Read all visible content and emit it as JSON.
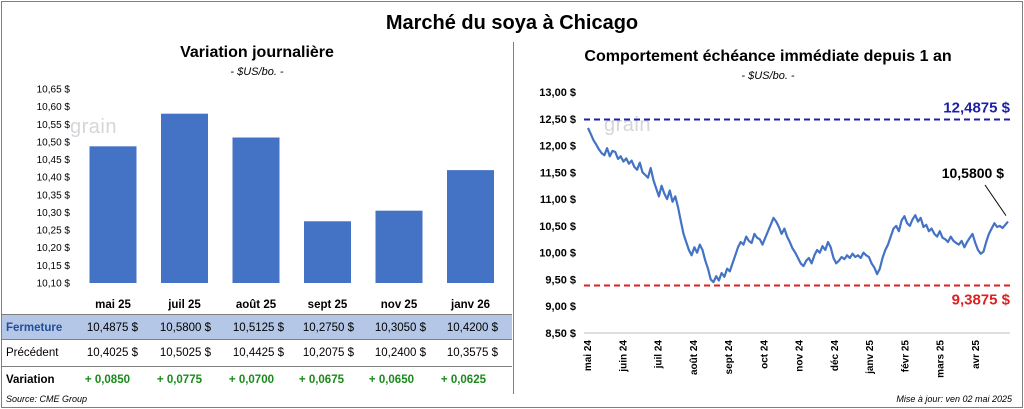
{
  "title": "Marché du soya à Chicago",
  "source": "Source: CME Group",
  "updated": "Mise à jour: ven 02 mai 2025",
  "logo_text": "grain",
  "chart_data": [
    {
      "type": "bar",
      "title": "Variation journalière",
      "subtitle": "- $US/bo. -",
      "categories": [
        "mai 25",
        "juil 25",
        "août 25",
        "sept 25",
        "nov 25",
        "janv 26"
      ],
      "values": [
        10.4875,
        10.58,
        10.5125,
        10.275,
        10.305,
        10.42
      ],
      "ylim": [
        10.1,
        10.65
      ],
      "yticks": [
        "10,10 $",
        "10,15 $",
        "10,20 $",
        "10,25 $",
        "10,30 $",
        "10,35 $",
        "10,40 $",
        "10,45 $",
        "10,50 $",
        "10,55 $",
        "10,60 $",
        "10,65 $"
      ],
      "bar_color": "#4472c4",
      "table": {
        "rows": [
          {
            "label": "Fermeture",
            "values": [
              "10,4875  $",
              "10,5800  $",
              "10,5125  $",
              "10,2750  $",
              "10,3050  $",
              "10,4200  $"
            ]
          },
          {
            "label": "Précédent",
            "values": [
              "10,4025  $",
              "10,5025  $",
              "10,4425  $",
              "10,2075  $",
              "10,2400  $",
              "10,3575  $"
            ]
          },
          {
            "label": "Variation",
            "values": [
              "+ 0,0850",
              "+ 0,0775",
              "+ 0,0700",
              "+ 0,0675",
              "+ 0,0650",
              "+ 0,0625"
            ]
          }
        ]
      }
    },
    {
      "type": "line",
      "title": "Comportement échéance immédiate depuis 1 an",
      "subtitle": "- $US/bo. -",
      "ylim": [
        8.5,
        13.0
      ],
      "yticks": [
        "8,50 $",
        "9,00 $",
        "9,50 $",
        "10,00 $",
        "10,50 $",
        "11,00 $",
        "11,50 $",
        "12,00 $",
        "12,50 $",
        "13,00 $"
      ],
      "xticks": [
        "mai 24",
        "juin 24",
        "juil 24",
        "août 24",
        "sept 24",
        "oct 24",
        "nov 24",
        "déc 24",
        "janv 25",
        "févr 25",
        "mars 25",
        "avr 25"
      ],
      "line_color": "#4472c4",
      "max_line": {
        "value": 12.4875,
        "label": "12,4875 $",
        "color": "#1f1fa8"
      },
      "min_line": {
        "value": 9.3875,
        "label": "9,3875 $",
        "color": "#e01f1f"
      },
      "last_label": "10,5800 $",
      "series": [
        {
          "values": [
            12.33,
            12.22,
            12.1,
            12.02,
            11.93,
            11.86,
            11.82,
            11.95,
            11.8,
            11.9,
            11.88,
            11.75,
            11.8,
            11.7,
            11.76,
            11.66,
            11.72,
            11.6,
            11.55,
            11.68,
            11.5,
            11.45,
            11.4,
            11.58,
            11.35,
            11.2,
            11.05,
            11.25,
            11.1,
            11.0,
            11.16,
            10.95,
            11.05,
            10.85,
            10.6,
            10.35,
            10.2,
            10.05,
            9.95,
            10.1,
            10.0,
            10.15,
            10.05,
            9.85,
            9.7,
            9.5,
            9.45,
            9.56,
            9.48,
            9.62,
            9.55,
            9.7,
            9.65,
            9.8,
            9.95,
            10.1,
            10.2,
            10.15,
            10.3,
            10.22,
            10.18,
            10.35,
            10.28,
            10.25,
            10.15,
            10.28,
            10.4,
            10.52,
            10.65,
            10.58,
            10.48,
            10.35,
            10.45,
            10.3,
            10.2,
            10.08,
            10.0,
            9.9,
            9.8,
            9.75,
            9.85,
            9.9,
            9.8,
            9.95,
            10.05,
            10.0,
            10.12,
            10.05,
            10.2,
            10.1,
            9.9,
            9.8,
            9.85,
            9.92,
            9.88,
            9.95,
            9.9,
            9.98,
            9.92,
            9.95,
            9.9,
            10.0,
            9.95,
            9.92,
            9.8,
            9.72,
            9.6,
            9.7,
            9.9,
            10.05,
            10.15,
            10.3,
            10.45,
            10.5,
            10.4,
            10.6,
            10.68,
            10.55,
            10.5,
            10.62,
            10.7,
            10.58,
            10.65,
            10.48,
            10.52,
            10.4,
            10.45,
            10.35,
            10.3,
            10.4,
            10.28,
            10.25,
            10.2,
            10.3,
            10.22,
            10.18,
            10.15,
            10.22,
            10.1,
            10.2,
            10.28,
            10.35,
            10.18,
            10.05,
            9.98,
            10.02,
            10.2,
            10.35,
            10.45,
            10.55,
            10.48,
            10.5,
            10.46,
            10.52,
            10.58
          ]
        }
      ]
    }
  ]
}
